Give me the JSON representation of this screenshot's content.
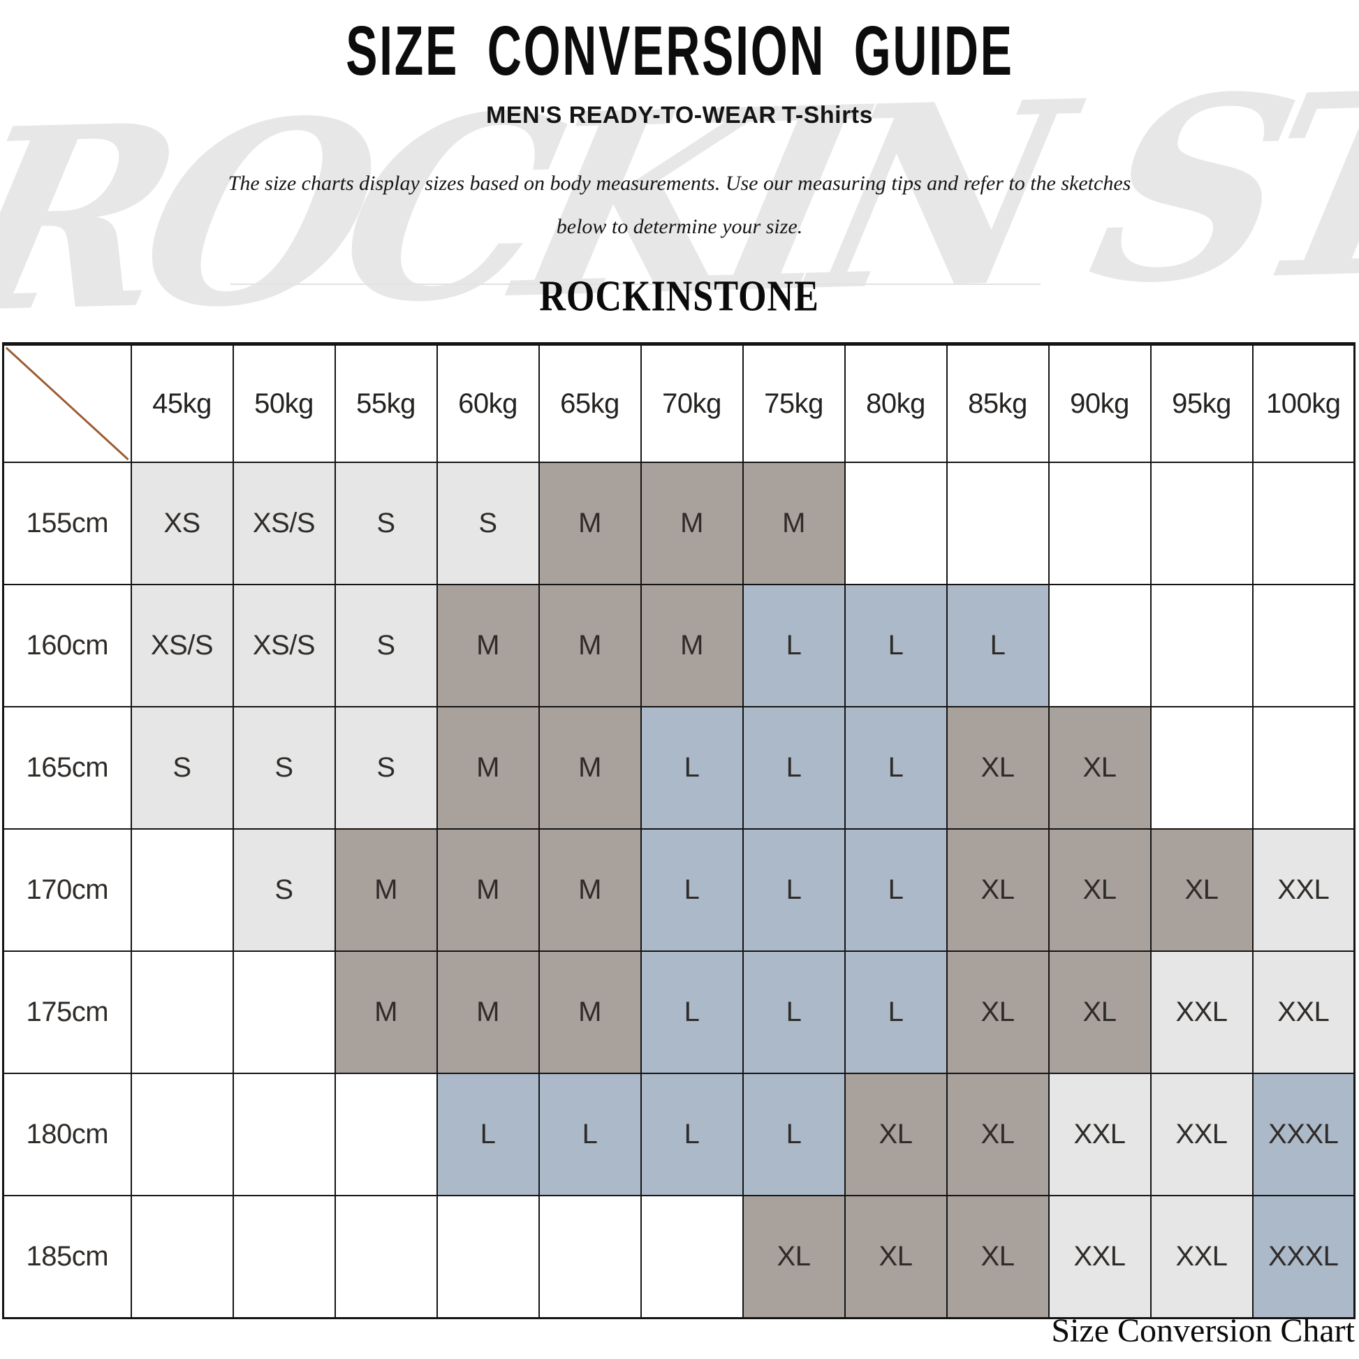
{
  "header": {
    "title": "SIZE CONVERSION GUIDE",
    "subtitle_caps": "MEN'S READY-TO-WEAR",
    "subtitle_product": "T-Shirts",
    "description_line1": "The size charts display sizes based on body measurements. Use our measuring tips and refer to the sketches",
    "description_line2": "below to determine your size.",
    "brand": "ROCKINSTONE",
    "watermark": "ROCKIN STONE"
  },
  "colors": {
    "light": "#e5e6e5",
    "taupe": "#a8a19c",
    "blue": "#abb9c9",
    "empty": "#ffffff",
    "diagonal": "#9a5c33",
    "border": "#141414"
  },
  "table": {
    "weight_headers": [
      "45kg",
      "50kg",
      "55kg",
      "60kg",
      "65kg",
      "70kg",
      "75kg",
      "80kg",
      "85kg",
      "90kg",
      "95kg",
      "100kg"
    ],
    "rows": [
      {
        "height": "155cm",
        "cells": [
          {
            "label": "XS",
            "style": "light"
          },
          {
            "label": "XS/S",
            "style": "light"
          },
          {
            "label": "S",
            "style": "light"
          },
          {
            "label": "S",
            "style": "light"
          },
          {
            "label": "M",
            "style": "taupe"
          },
          {
            "label": "M",
            "style": "taupe"
          },
          {
            "label": "M",
            "style": "taupe"
          },
          {
            "label": "",
            "style": "empty"
          },
          {
            "label": "",
            "style": "empty"
          },
          {
            "label": "",
            "style": "empty"
          },
          {
            "label": "",
            "style": "empty"
          },
          {
            "label": "",
            "style": "empty"
          }
        ]
      },
      {
        "height": "160cm",
        "cells": [
          {
            "label": "XS/S",
            "style": "light"
          },
          {
            "label": "XS/S",
            "style": "light"
          },
          {
            "label": "S",
            "style": "light"
          },
          {
            "label": "M",
            "style": "taupe"
          },
          {
            "label": "M",
            "style": "taupe"
          },
          {
            "label": "M",
            "style": "taupe"
          },
          {
            "label": "L",
            "style": "blue"
          },
          {
            "label": "L",
            "style": "blue"
          },
          {
            "label": "L",
            "style": "blue"
          },
          {
            "label": "",
            "style": "empty"
          },
          {
            "label": "",
            "style": "empty"
          },
          {
            "label": "",
            "style": "empty"
          }
        ]
      },
      {
        "height": "165cm",
        "cells": [
          {
            "label": "S",
            "style": "light"
          },
          {
            "label": "S",
            "style": "light"
          },
          {
            "label": "S",
            "style": "light"
          },
          {
            "label": "M",
            "style": "taupe"
          },
          {
            "label": "M",
            "style": "taupe"
          },
          {
            "label": "L",
            "style": "blue"
          },
          {
            "label": "L",
            "style": "blue"
          },
          {
            "label": "L",
            "style": "blue"
          },
          {
            "label": "XL",
            "style": "taupe"
          },
          {
            "label": "XL",
            "style": "taupe"
          },
          {
            "label": "",
            "style": "empty"
          },
          {
            "label": "",
            "style": "empty"
          }
        ]
      },
      {
        "height": "170cm",
        "cells": [
          {
            "label": "",
            "style": "empty"
          },
          {
            "label": "S",
            "style": "light"
          },
          {
            "label": "M",
            "style": "taupe"
          },
          {
            "label": "M",
            "style": "taupe"
          },
          {
            "label": "M",
            "style": "taupe"
          },
          {
            "label": "L",
            "style": "blue"
          },
          {
            "label": "L",
            "style": "blue"
          },
          {
            "label": "L",
            "style": "blue"
          },
          {
            "label": "XL",
            "style": "taupe"
          },
          {
            "label": "XL",
            "style": "taupe"
          },
          {
            "label": "XL",
            "style": "taupe"
          },
          {
            "label": "XXL",
            "style": "light"
          }
        ]
      },
      {
        "height": "175cm",
        "cells": [
          {
            "label": "",
            "style": "empty"
          },
          {
            "label": "",
            "style": "empty"
          },
          {
            "label": "M",
            "style": "taupe"
          },
          {
            "label": "M",
            "style": "taupe"
          },
          {
            "label": "M",
            "style": "taupe"
          },
          {
            "label": "L",
            "style": "blue"
          },
          {
            "label": "L",
            "style": "blue"
          },
          {
            "label": "L",
            "style": "blue"
          },
          {
            "label": "XL",
            "style": "taupe"
          },
          {
            "label": "XL",
            "style": "taupe"
          },
          {
            "label": "XXL",
            "style": "light"
          },
          {
            "label": "XXL",
            "style": "light"
          }
        ]
      },
      {
        "height": "180cm",
        "cells": [
          {
            "label": "",
            "style": "empty"
          },
          {
            "label": "",
            "style": "empty"
          },
          {
            "label": "",
            "style": "empty"
          },
          {
            "label": "L",
            "style": "blue"
          },
          {
            "label": "L",
            "style": "blue"
          },
          {
            "label": "L",
            "style": "blue"
          },
          {
            "label": "L",
            "style": "blue"
          },
          {
            "label": "XL",
            "style": "taupe"
          },
          {
            "label": "XL",
            "style": "taupe"
          },
          {
            "label": "XXL",
            "style": "light"
          },
          {
            "label": "XXL",
            "style": "light"
          },
          {
            "label": "XXXL",
            "style": "blue"
          }
        ]
      },
      {
        "height": "185cm",
        "cells": [
          {
            "label": "",
            "style": "empty"
          },
          {
            "label": "",
            "style": "empty"
          },
          {
            "label": "",
            "style": "empty"
          },
          {
            "label": "",
            "style": "empty"
          },
          {
            "label": "",
            "style": "empty"
          },
          {
            "label": "",
            "style": "empty"
          },
          {
            "label": "XL",
            "style": "taupe"
          },
          {
            "label": "XL",
            "style": "taupe"
          },
          {
            "label": "XL",
            "style": "taupe"
          },
          {
            "label": "XXL",
            "style": "light"
          },
          {
            "label": "XXL",
            "style": "light"
          },
          {
            "label": "XXXL",
            "style": "blue"
          }
        ]
      }
    ]
  },
  "footer": {
    "caption": "Size Conversion Chart"
  }
}
